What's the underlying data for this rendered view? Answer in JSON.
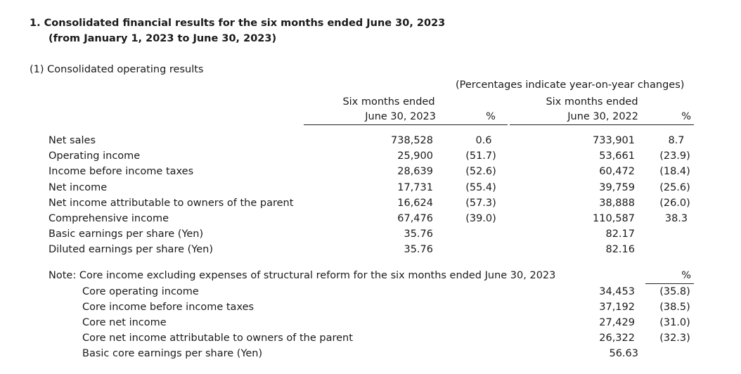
{
  "section": {
    "title_line1": "1. Consolidated financial results for the six months ended June 30, 2023",
    "title_line2": "(from January 1, 2023 to June 30, 2023)",
    "subsection": "(1) Consolidated operating results",
    "pct_note": "(Percentages indicate year-on-year changes)"
  },
  "headers": {
    "current_line1": "Six months ended",
    "current_line2": "June 30, 2023",
    "current_pct": "%",
    "prior_line1": "Six months ended",
    "prior_line2": "June 30, 2022",
    "prior_pct": "%"
  },
  "rows": [
    {
      "label": "Net sales",
      "cur": "738,528",
      "cur_pct": "0.6",
      "prior": "733,901",
      "prior_pct": "8.7"
    },
    {
      "label": "Operating income",
      "cur": "25,900",
      "cur_pct": "(51.7)",
      "prior": "53,661",
      "prior_pct": "(23.9)"
    },
    {
      "label": "Income before income taxes",
      "cur": "28,639",
      "cur_pct": "(52.6)",
      "prior": "60,472",
      "prior_pct": "(18.4)"
    },
    {
      "label": "Net income",
      "cur": "17,731",
      "cur_pct": "(55.4)",
      "prior": "39,759",
      "prior_pct": "(25.6)"
    },
    {
      "label": "Net income attributable to owners of the parent",
      "cur": "16,624",
      "cur_pct": "(57.3)",
      "prior": "38,888",
      "prior_pct": "(26.0)"
    },
    {
      "label": "Comprehensive income",
      "cur": "67,476",
      "cur_pct": "(39.0)",
      "prior": "110,587",
      "prior_pct": "38.3"
    },
    {
      "label": "Basic earnings per share (Yen)",
      "cur": "35.76",
      "cur_pct": "",
      "prior": "82.17",
      "prior_pct": ""
    },
    {
      "label": "Diluted earnings per share (Yen)",
      "cur": "35.76",
      "cur_pct": "",
      "prior": "82.16",
      "prior_pct": ""
    }
  ],
  "note": {
    "title": "Note: Core income excluding expenses of structural reform for the six months ended June 30, 2023",
    "pct_header": "%",
    "rows": [
      {
        "label": "Core operating income",
        "value": "34,453",
        "pct": "(35.8)"
      },
      {
        "label": "Core income before income taxes",
        "value": "37,192",
        "pct": "(38.5)"
      },
      {
        "label": "Core net income",
        "value": "27,429",
        "pct": "(31.0)"
      },
      {
        "label": "Core net income attributable to owners of the parent",
        "value": "26,322",
        "pct": "(32.3)"
      },
      {
        "label": "Basic core earnings per share (Yen)",
        "value": "56.63",
        "pct": ""
      }
    ]
  }
}
